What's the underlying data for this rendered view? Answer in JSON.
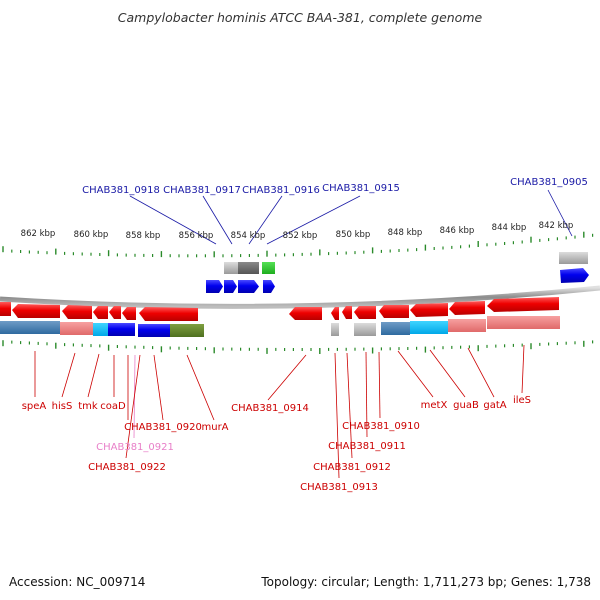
{
  "title": "Campylobacter hominis ATCC BAA-381, complete genome",
  "footer": {
    "accession": "Accession: NC_009714",
    "summary": "Topology: circular; Length: 1,711,273 bp; Genes: 1,738"
  },
  "colors": {
    "forward_label": "#1a1aa6",
    "reverse_label": "#cc0000",
    "pseudo_label": "#e87fc8",
    "backbone": "#9a9a9a",
    "tick": "#2a8a2a",
    "forward_cds": "#0000ee",
    "reverse_cds": "#ee0000"
  },
  "ticks": [
    {
      "label": "862 kbp"
    },
    {
      "label": "860 kbp"
    },
    {
      "label": "858 kbp"
    },
    {
      "label": "856 kbp"
    },
    {
      "label": "854 kbp"
    },
    {
      "label": "852 kbp"
    },
    {
      "label": "850 kbp"
    },
    {
      "label": "848 kbp"
    },
    {
      "label": "846 kbp"
    },
    {
      "label": "844 kbp"
    },
    {
      "label": "842 kbp"
    }
  ],
  "top_labels": [
    {
      "text": "CHAB381_0918"
    },
    {
      "text": "CHAB381_0917"
    },
    {
      "text": "CHAB381_0916"
    },
    {
      "text": "CHAB381_0915"
    },
    {
      "text": "CHAB381_0905"
    }
  ],
  "bottom_labels": [
    {
      "text": "speA"
    },
    {
      "text": "hisS"
    },
    {
      "text": "tmk"
    },
    {
      "text": "coaD"
    },
    {
      "text": "CHAB381_0920"
    },
    {
      "text": "CHAB381_0921"
    },
    {
      "text": "CHAB381_0922"
    },
    {
      "text": "murA"
    },
    {
      "text": "CHAB381_0914"
    },
    {
      "text": "CHAB381_0910"
    },
    {
      "text": "CHAB381_0911"
    },
    {
      "text": "CHAB381_0912"
    },
    {
      "text": "CHAB381_0913"
    },
    {
      "text": "metX"
    },
    {
      "text": "guaB"
    },
    {
      "text": "gatA"
    },
    {
      "text": "ileS"
    }
  ]
}
